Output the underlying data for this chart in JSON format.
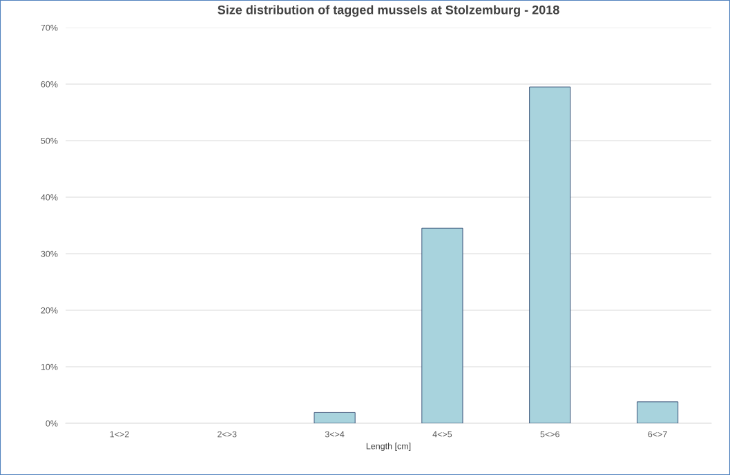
{
  "chart_data": {
    "type": "bar",
    "title": "Size distribution of tagged mussels at Stolzemburg - 2018",
    "xlabel": "Length [cm]",
    "categories": [
      "1<>2",
      "2<>3",
      "3<>4",
      "4<>5",
      "5<>6",
      "6<>7"
    ],
    "values": [
      0,
      0,
      1.9,
      34.5,
      59.5,
      3.8
    ],
    "color": "#a8d3dd",
    "ylim": [
      0,
      70
    ],
    "yticks": [
      {
        "value": 0,
        "label": "0%"
      },
      {
        "value": 10,
        "label": "10%"
      },
      {
        "value": 20,
        "label": "20%"
      },
      {
        "value": 30,
        "label": "30%"
      },
      {
        "value": 40,
        "label": "40%"
      },
      {
        "value": 50,
        "label": "50%"
      },
      {
        "value": 60,
        "label": "60%"
      },
      {
        "value": 70,
        "label": "70%"
      }
    ],
    "grid": "y",
    "legend": false
  }
}
